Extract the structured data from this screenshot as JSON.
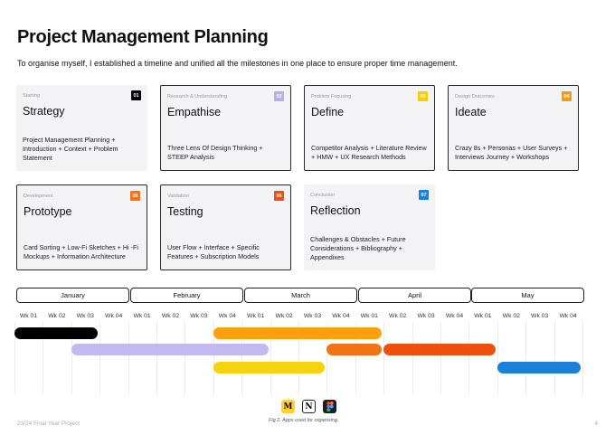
{
  "header": {
    "title": "Project Management Planning",
    "subtitle": "To organise myself, I established a timeline and unified all the milestones in one place to ensure proper time management."
  },
  "cards": [
    {
      "phase": "Starting",
      "num": "01",
      "name": "Strategy",
      "desc": "Project Management Planning + Introduction + Context + Problem Statement",
      "num_color": "#000000"
    },
    {
      "phase": "Research & Understanding",
      "num": "02",
      "name": "Empathise",
      "desc": "Three Lens Of Design Thinking + STEEP Analysis",
      "num_color": "#b7aeea"
    },
    {
      "phase": "Problem Focusing",
      "num": "03",
      "name": "Define",
      "desc": "Competitor Analysis + Literature Review + HMW + UX Research Methods",
      "num_color": "#f5cd05"
    },
    {
      "phase": "Design Outcomes",
      "num": "04",
      "name": "Ideate",
      "desc": "Crazy 8s + Personas + User Surveys + Interviews Journey +  Workshops",
      "num_color": "#f59c0a"
    },
    {
      "phase": "Development",
      "num": "05",
      "name": "Prototype",
      "desc": "Card Sorting + Low-Fi Sketches + Hi -Fi Mockups + Information Architecture",
      "num_color": "#f47216"
    },
    {
      "phase": "Validation",
      "num": "06",
      "name": "Testing",
      "desc": "User Flow + Interface + Specific Features + Subscription Models",
      "num_color": "#f0500f"
    },
    {
      "phase": "Conclusion",
      "num": "07",
      "name": "Reflection",
      "desc": "Challenges & Obstacles + Future Considerations + Bibliography + Appendixes",
      "num_color": "#1b80d8"
    }
  ],
  "timeline": {
    "months": [
      "January",
      "February",
      "March",
      "April",
      "May"
    ],
    "weeks": [
      "Wk 01",
      "Wk 02",
      "Wk 03",
      "Wk 04",
      "Wk 01",
      "Wk 02",
      "Wk 03",
      "Wk 04",
      "Wk 01",
      "Wk 02",
      "Wk 03",
      "Wk 04",
      "Wk 01",
      "Wk 02",
      "Wk 03",
      "Wk 04",
      "Wk 01",
      "Wk 02",
      "Wk 03",
      "Wk 04"
    ],
    "bars": [
      {
        "phase": "01",
        "color": "#000000",
        "start_week": 1,
        "end_week": 3,
        "row": 0
      },
      {
        "phase": "02",
        "color": "#c2b9f0",
        "start_week": 3,
        "end_week": 9,
        "row": 1
      },
      {
        "phase": "03",
        "color": "#f7d20e",
        "start_week": 8,
        "end_week": 11,
        "row": 2
      },
      {
        "phase": "04",
        "color": "#fb9f0d",
        "start_week": 8,
        "end_week": 13,
        "row": 0
      },
      {
        "phase": "05",
        "color": "#f47216",
        "start_week": 12,
        "end_week": 13,
        "row": 1
      },
      {
        "phase": "06",
        "color": "#f0500f",
        "start_week": 14,
        "end_week": 17,
        "row": 1
      },
      {
        "phase": "07",
        "color": "#1b80d8",
        "start_week": 18,
        "end_week": 20,
        "row": 2
      }
    ]
  },
  "apps": [
    {
      "name": "miro-icon",
      "bg": "#ffd02f",
      "fg": "#050038",
      "glyph": "M"
    },
    {
      "name": "notion-icon",
      "bg": "#ffffff",
      "fg": "#000000",
      "glyph": "N"
    },
    {
      "name": "figma-icon",
      "bg": "#1e1e1e",
      "fg": "#ffffff",
      "glyph": ""
    }
  ],
  "caption": "Fig 2. Apps used for organising.",
  "footer": {
    "left": "23/24 Final Year Project",
    "right": "4"
  }
}
